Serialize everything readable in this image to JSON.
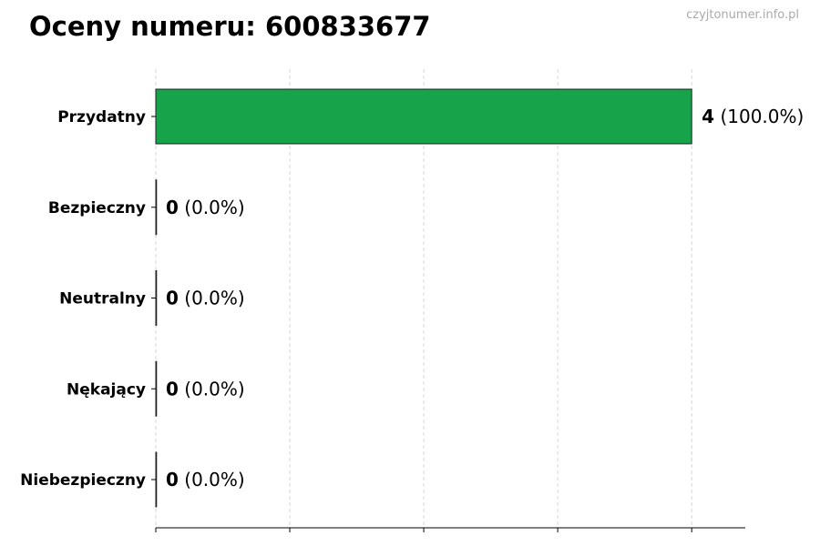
{
  "title": "Oceny numeru: 600833677",
  "watermark": "czyjtonumer.info.pl",
  "chart_data": {
    "type": "bar",
    "orientation": "horizontal",
    "categories": [
      "Przydatny",
      "Bezpieczny",
      "Neutralny",
      "Nękający",
      "Niebezpieczny"
    ],
    "values": [
      4,
      0,
      0,
      0,
      0
    ],
    "value_labels": [
      "4",
      "0",
      "0",
      "0",
      "0"
    ],
    "percent_labels": [
      "(100.0%)",
      "(0.0%)",
      "(0.0%)",
      "(0.0%)",
      "(0.0%)"
    ],
    "colors": [
      "#16a34a",
      "#16a34a",
      "#16a34a",
      "#16a34a",
      "#16a34a"
    ],
    "xlim": [
      0,
      4.4
    ],
    "x_gridlines": [
      0,
      1,
      2,
      3,
      4
    ],
    "grid": true,
    "xlabel": "",
    "ylabel": ""
  }
}
